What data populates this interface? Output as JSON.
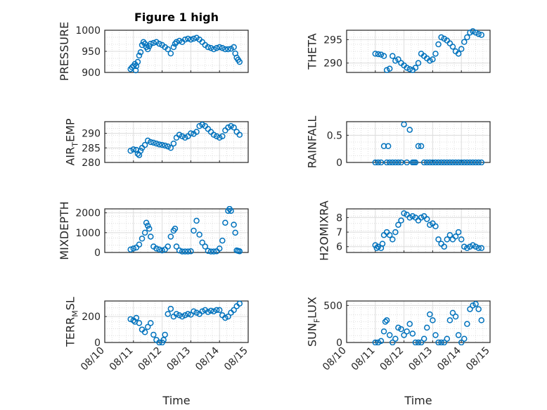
{
  "figure": {
    "title": "Figure 1 high",
    "xlabel": "Time",
    "x_tick_labels": [
      "08/10",
      "08/11",
      "08/12",
      "08/13",
      "08/14",
      "08/15"
    ],
    "marker_color": "#0072BD"
  },
  "chart_data": [
    {
      "type": "scatter",
      "ylabel": "PRESSURE",
      "ylim": [
        900,
        1000
      ],
      "yticks": [
        900,
        950,
        1000
      ],
      "x_unit": "days since 08/10",
      "grid": true,
      "x": [
        0.9,
        0.95,
        1.0,
        1.05,
        1.08,
        1.1,
        1.15,
        1.2,
        1.25,
        1.3,
        1.35,
        1.4,
        1.45,
        1.5,
        1.55,
        1.6,
        1.7,
        1.8,
        1.9,
        2.0,
        2.1,
        2.2,
        2.3,
        2.4,
        2.45,
        2.5,
        2.6,
        2.7,
        2.8,
        2.9,
        3.0,
        3.1,
        3.2,
        3.3,
        3.4,
        3.5,
        3.6,
        3.7,
        3.8,
        3.9,
        4.0,
        4.1,
        4.2,
        4.3,
        4.4,
        4.5,
        4.55,
        4.6,
        4.65,
        4.7
      ],
      "y": [
        908,
        912,
        915,
        920,
        905,
        915,
        925,
        940,
        948,
        965,
        972,
        968,
        960,
        955,
        962,
        968,
        970,
        972,
        968,
        965,
        960,
        955,
        945,
        960,
        968,
        972,
        975,
        972,
        978,
        980,
        978,
        980,
        982,
        978,
        972,
        965,
        960,
        958,
        955,
        958,
        960,
        958,
        955,
        955,
        956,
        960,
        945,
        935,
        930,
        925
      ]
    },
    {
      "type": "scatter",
      "ylabel": "THETA",
      "ylim": [
        288,
        297
      ],
      "yticks": [
        290,
        295
      ],
      "x_unit": "days since 08/10",
      "grid": true,
      "x": [
        1.0,
        1.1,
        1.2,
        1.3,
        1.4,
        1.5,
        1.6,
        1.7,
        1.8,
        1.9,
        2.0,
        2.1,
        2.2,
        2.3,
        2.4,
        2.5,
        2.6,
        2.7,
        2.8,
        2.9,
        3.0,
        3.1,
        3.2,
        3.3,
        3.4,
        3.5,
        3.6,
        3.7,
        3.8,
        3.9,
        4.0,
        4.1,
        4.2,
        4.3,
        4.4,
        4.5,
        4.6,
        4.7
      ],
      "y": [
        292.0,
        291.9,
        291.8,
        291.5,
        288.5,
        288.8,
        291.5,
        290.5,
        290.8,
        290.0,
        289.5,
        289.0,
        288.7,
        288.5,
        289.0,
        290.0,
        292.0,
        291.5,
        291.0,
        290.5,
        290.8,
        292.0,
        294.0,
        295.5,
        295.2,
        294.8,
        294.2,
        293.5,
        292.5,
        292.0,
        293.0,
        294.5,
        295.5,
        296.5,
        296.8,
        296.5,
        296.2,
        296.0
      ]
    },
    {
      "type": "scatter",
      "ylabel": "AIR_TEMP",
      "ylim": [
        280,
        294
      ],
      "yticks": [
        280,
        285,
        290
      ],
      "x_unit": "days since 08/10",
      "grid": true,
      "x": [
        0.9,
        1.0,
        1.1,
        1.15,
        1.2,
        1.25,
        1.3,
        1.4,
        1.5,
        1.6,
        1.7,
        1.8,
        1.9,
        2.0,
        2.1,
        2.2,
        2.3,
        2.4,
        2.5,
        2.6,
        2.7,
        2.8,
        2.9,
        3.0,
        3.1,
        3.2,
        3.3,
        3.4,
        3.5,
        3.6,
        3.7,
        3.8,
        3.9,
        4.0,
        4.1,
        4.2,
        4.3,
        4.4,
        4.5,
        4.6,
        4.7
      ],
      "y": [
        284.0,
        284.5,
        284.3,
        283.0,
        282.5,
        284.0,
        285.0,
        286.0,
        287.5,
        287.0,
        286.8,
        286.5,
        286.2,
        286.0,
        285.8,
        285.5,
        285.0,
        286.5,
        288.5,
        289.5,
        289.0,
        288.5,
        289.0,
        290.0,
        289.8,
        290.5,
        292.5,
        293.0,
        292.5,
        291.5,
        290.5,
        289.5,
        289.0,
        288.5,
        289.0,
        291.0,
        292.0,
        292.5,
        292.0,
        290.5,
        289.5
      ]
    },
    {
      "type": "scatter",
      "ylabel": "RAINFALL",
      "ylim": [
        0,
        0.75
      ],
      "yticks": [
        0,
        0.5
      ],
      "x_unit": "days since 08/10",
      "grid": true,
      "x": [
        1.0,
        1.1,
        1.2,
        1.3,
        1.4,
        1.45,
        1.5,
        1.6,
        1.7,
        1.8,
        1.9,
        2.0,
        2.1,
        2.2,
        2.3,
        2.35,
        2.4,
        2.5,
        2.6,
        2.7,
        2.8,
        2.9,
        3.0,
        3.1,
        3.2,
        3.3,
        3.4,
        3.5,
        3.6,
        3.7,
        3.8,
        3.9,
        4.0,
        4.1,
        4.2,
        4.3,
        4.4,
        4.5,
        4.6,
        4.7
      ],
      "y": [
        0,
        0,
        0,
        0.3,
        0,
        0.3,
        0,
        0,
        0,
        0,
        0,
        0.7,
        0,
        0.6,
        0,
        0,
        0,
        0.3,
        0.3,
        0,
        0,
        0,
        0,
        0,
        0,
        0,
        0,
        0,
        0,
        0,
        0,
        0,
        0,
        0,
        0,
        0,
        0,
        0,
        0,
        0
      ]
    },
    {
      "type": "scatter",
      "ylabel": "MIXDEPTH",
      "ylim": [
        0,
        2200
      ],
      "yticks": [
        0,
        1000,
        2000
      ],
      "x_unit": "days since 08/10",
      "grid": true,
      "x": [
        0.9,
        1.0,
        1.1,
        1.2,
        1.3,
        1.4,
        1.45,
        1.5,
        1.55,
        1.6,
        1.7,
        1.8,
        1.9,
        2.0,
        2.1,
        2.2,
        2.3,
        2.4,
        2.45,
        2.5,
        2.6,
        2.7,
        2.8,
        2.9,
        3.0,
        3.1,
        3.2,
        3.3,
        3.4,
        3.5,
        3.6,
        3.7,
        3.8,
        3.9,
        4.0,
        4.1,
        4.2,
        4.3,
        4.35,
        4.4,
        4.5,
        4.55,
        4.6,
        4.65,
        4.7
      ],
      "y": [
        150,
        200,
        250,
        400,
        700,
        1000,
        1500,
        1350,
        1200,
        800,
        300,
        200,
        150,
        100,
        150,
        300,
        800,
        1100,
        1200,
        300,
        100,
        50,
        50,
        50,
        60,
        1100,
        1600,
        900,
        500,
        300,
        80,
        50,
        50,
        60,
        200,
        600,
        1500,
        2100,
        2200,
        2100,
        1400,
        1000,
        100,
        80,
        60
      ]
    },
    {
      "type": "scatter",
      "ylabel": "H2OMIXRA",
      "ylim": [
        5.6,
        8.6
      ],
      "yticks": [
        6,
        7,
        8
      ],
      "x_unit": "days since 08/10",
      "grid": true,
      "x": [
        1.0,
        1.05,
        1.1,
        1.2,
        1.25,
        1.3,
        1.4,
        1.5,
        1.6,
        1.7,
        1.8,
        1.9,
        2.0,
        2.1,
        2.2,
        2.3,
        2.4,
        2.5,
        2.6,
        2.7,
        2.8,
        2.9,
        3.0,
        3.1,
        3.2,
        3.3,
        3.4,
        3.5,
        3.6,
        3.7,
        3.8,
        3.9,
        4.0,
        4.1,
        4.2,
        4.3,
        4.4,
        4.5,
        4.6,
        4.7
      ],
      "y": [
        6.1,
        5.9,
        6.0,
        5.9,
        6.2,
        6.8,
        7.0,
        6.8,
        6.5,
        7.0,
        7.5,
        7.8,
        8.3,
        8.2,
        8.0,
        8.1,
        8.0,
        7.8,
        8.0,
        8.1,
        7.9,
        7.5,
        7.6,
        7.4,
        6.5,
        6.2,
        6.0,
        6.5,
        6.8,
        6.5,
        6.7,
        7.0,
        6.5,
        6.0,
        5.9,
        6.0,
        6.1,
        6.0,
        5.9,
        5.9
      ]
    },
    {
      "type": "scatter",
      "ylabel": "TERR_MSL",
      "ylim": [
        0,
        320
      ],
      "yticks": [
        0,
        200
      ],
      "x_unit": "days since 08/10",
      "grid": true,
      "x": [
        0.9,
        1.0,
        1.05,
        1.1,
        1.2,
        1.3,
        1.4,
        1.5,
        1.6,
        1.7,
        1.8,
        1.9,
        2.0,
        2.05,
        2.1,
        2.2,
        2.3,
        2.4,
        2.5,
        2.6,
        2.7,
        2.8,
        2.9,
        3.0,
        3.1,
        3.2,
        3.3,
        3.4,
        3.5,
        3.6,
        3.7,
        3.8,
        3.9,
        4.0,
        4.1,
        4.2,
        4.3,
        4.4,
        4.5,
        4.6,
        4.7
      ],
      "y": [
        180,
        170,
        160,
        190,
        150,
        100,
        80,
        120,
        150,
        60,
        20,
        0,
        0,
        20,
        60,
        220,
        260,
        200,
        220,
        210,
        200,
        210,
        220,
        215,
        240,
        230,
        220,
        240,
        250,
        235,
        245,
        240,
        250,
        250,
        210,
        190,
        200,
        230,
        250,
        280,
        300
      ]
    },
    {
      "type": "scatter",
      "ylabel": "SUN_FLUX",
      "ylim": [
        0,
        560
      ],
      "yticks": [
        0,
        500
      ],
      "x_unit": "days since 08/10",
      "grid": true,
      "x": [
        1.0,
        1.1,
        1.2,
        1.3,
        1.35,
        1.4,
        1.5,
        1.6,
        1.7,
        1.8,
        1.9,
        2.0,
        2.1,
        2.2,
        2.3,
        2.4,
        2.5,
        2.6,
        2.7,
        2.8,
        2.9,
        3.0,
        3.1,
        3.2,
        3.3,
        3.4,
        3.5,
        3.6,
        3.7,
        3.8,
        3.9,
        4.0,
        4.1,
        4.2,
        4.3,
        4.4,
        4.5,
        4.6,
        4.7
      ],
      "y": [
        0,
        0,
        20,
        150,
        280,
        300,
        100,
        0,
        50,
        200,
        180,
        100,
        150,
        250,
        120,
        0,
        0,
        0,
        50,
        200,
        380,
        300,
        100,
        0,
        0,
        0,
        50,
        300,
        400,
        350,
        100,
        0,
        50,
        250,
        450,
        500,
        520,
        450,
        300
      ]
    }
  ]
}
